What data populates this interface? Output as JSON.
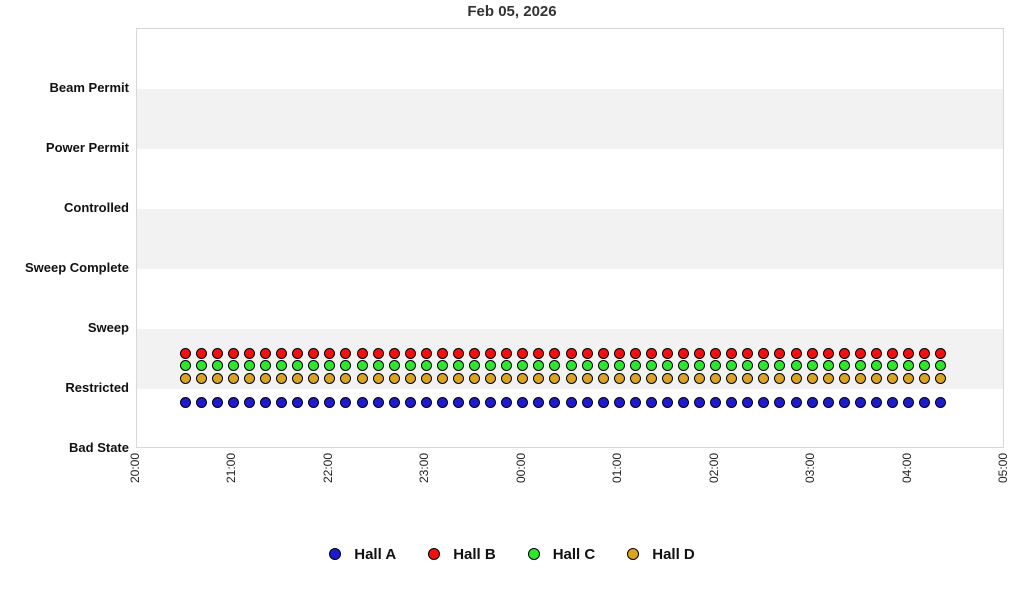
{
  "title": "Feb 05, 2026",
  "chart_data": {
    "type": "scatter",
    "title": "Feb 05, 2026",
    "x_axis": {
      "start": "20:00",
      "end": "05:00",
      "tick_labels": [
        "20:00",
        "21:00",
        "22:00",
        "23:00",
        "00:00",
        "01:00",
        "02:00",
        "03:00",
        "04:00",
        "05:00"
      ],
      "tick_interval": "1 hour",
      "tick_label_rotation_deg": 90
    },
    "y_axis": {
      "categories_bottom_to_top": [
        "Bad State",
        "Restricted",
        "Sweep",
        "Sweep Complete",
        "Controlled",
        "Power Permit",
        "Beam Permit"
      ],
      "ylim": [
        0,
        7
      ],
      "band_fill": "#f2f2f2",
      "grid": "alternating-bands"
    },
    "sample_interval_minutes": 10,
    "times": [
      "20:30",
      "20:40",
      "20:50",
      "21:00",
      "21:10",
      "21:20",
      "21:30",
      "21:40",
      "21:50",
      "22:00",
      "22:10",
      "22:20",
      "22:30",
      "22:40",
      "22:50",
      "23:00",
      "23:10",
      "23:20",
      "23:30",
      "23:40",
      "23:50",
      "00:00",
      "00:10",
      "00:20",
      "00:30",
      "00:40",
      "00:50",
      "01:00",
      "01:10",
      "01:20",
      "01:30",
      "01:40",
      "01:50",
      "02:00",
      "02:10",
      "02:20",
      "02:30",
      "02:40",
      "02:50",
      "03:00",
      "03:10",
      "03:20",
      "03:30",
      "03:40",
      "03:50",
      "04:00",
      "04:10",
      "04:20"
    ],
    "series": [
      {
        "name": "Hall A",
        "color": "#1c1cce",
        "state": "Restricted",
        "plot_value": 0.78
      },
      {
        "name": "Hall B",
        "color": "#f01010",
        "state": "Restricted",
        "plot_value": 1.6
      },
      {
        "name": "Hall C",
        "color": "#2ee62e",
        "state": "Restricted",
        "plot_value": 1.39
      },
      {
        "name": "Hall D",
        "color": "#d9a521",
        "state": "Restricted",
        "plot_value": 1.18
      }
    ],
    "legend_position": "bottom"
  },
  "legend": {
    "items": [
      {
        "label": "Hall A",
        "color": "#1c1cce"
      },
      {
        "label": "Hall B",
        "color": "#f01010"
      },
      {
        "label": "Hall C",
        "color": "#2ee62e"
      },
      {
        "label": "Hall D",
        "color": "#d9a521"
      }
    ]
  }
}
